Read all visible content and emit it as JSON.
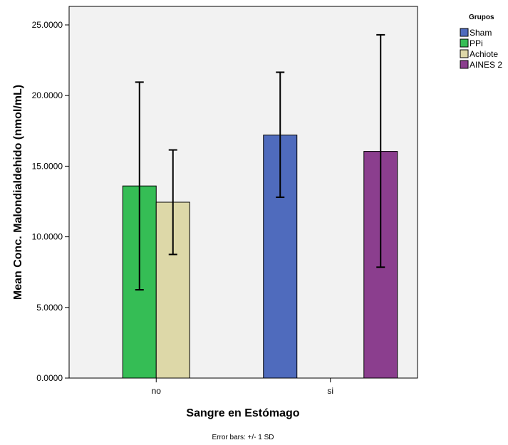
{
  "chart_data": {
    "type": "bar",
    "categories": [
      "no",
      "si"
    ],
    "series": [
      {
        "name": "Sham",
        "color": "#4f6bbd",
        "values": [
          null,
          17.2
        ],
        "error_minus": [
          null,
          4.4
        ],
        "error_plus": [
          null,
          4.45
        ]
      },
      {
        "name": "PPi",
        "color": "#35bd55",
        "values": [
          13.6,
          null
        ],
        "error_minus": [
          7.35,
          null
        ],
        "error_plus": [
          7.35,
          null
        ]
      },
      {
        "name": "Achiote",
        "color": "#ddd8a8",
        "values": [
          12.45,
          null
        ],
        "error_minus": [
          3.7,
          null
        ],
        "error_plus": [
          3.7,
          null
        ]
      },
      {
        "name": "AINES 2",
        "color": "#8b3e8e",
        "values": [
          null,
          16.05
        ],
        "error_minus": [
          null,
          8.2
        ],
        "error_plus": [
          null,
          8.25
        ]
      }
    ],
    "xlabel": "Sangre en Estómago",
    "ylabel": "Mean Conc. Malondialdehido (nmol/mL)",
    "ylim": [
      0,
      25
    ],
    "yticks": [
      "0.0000",
      "5.0000",
      "10.0000",
      "15.0000",
      "20.0000",
      "25.0000"
    ],
    "legend_title": "Grupos",
    "legend_position": "top-right outside",
    "footnote": "Error bars: +/- 1 SD",
    "plot_background": "#f2f2f2",
    "grid": false
  }
}
